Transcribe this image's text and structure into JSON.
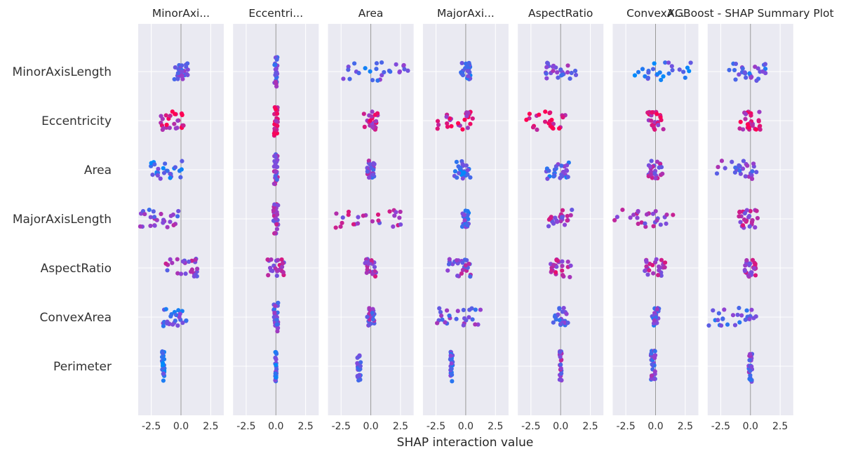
{
  "chart_data": {
    "type": "scatter",
    "title": "XGBoost - SHAP Summary Plot",
    "xlabel": "SHAP interaction value",
    "xlim": [
      -3.6,
      3.6
    ],
    "xticks": [
      "-2.5",
      "0.0",
      "2.5"
    ],
    "xtick_values": [
      -2.5,
      0,
      2.5
    ],
    "features": [
      "MinorAxisLength",
      "Eccentricity",
      "Area",
      "MajorAxisLength",
      "AspectRatio",
      "ConvexArea",
      "Perimeter"
    ],
    "panel_titles": [
      "MinorAxi...",
      "Eccentri...",
      "Area",
      "MajorAxi...",
      "AspectRatio",
      "ConvexA...",
      ""
    ],
    "grid": true,
    "colormap": {
      "low": "#008afb",
      "mid": "#8c45d8",
      "high": "#ff0052"
    },
    "panels": [
      {
        "rows": [
          {
            "center": 0.05,
            "spread": 0.6,
            "color": 0.35
          },
          {
            "center": -0.7,
            "spread": 1.0,
            "color": 0.8
          },
          {
            "center": -1.2,
            "spread": 1.4,
            "color": 0.2
          },
          {
            "center": -2.0,
            "spread": 1.8,
            "color": 0.45
          },
          {
            "center": 0.0,
            "spread": 1.5,
            "color": 0.55
          },
          {
            "center": -0.5,
            "spread": 1.0,
            "color": 0.3
          },
          {
            "center": -1.5,
            "spread": 0.12,
            "color": 0.2
          }
        ]
      },
      {
        "rows": [
          {
            "center": 0.0,
            "spread": 0.12,
            "color": 0.4
          },
          {
            "center": 0.0,
            "spread": 0.15,
            "color": 0.85
          },
          {
            "center": 0.0,
            "spread": 0.15,
            "color": 0.5
          },
          {
            "center": 0.0,
            "spread": 0.2,
            "color": 0.6
          },
          {
            "center": 0.0,
            "spread": 0.7,
            "color": 0.65
          },
          {
            "center": 0.0,
            "spread": 0.2,
            "color": 0.4
          },
          {
            "center": 0.0,
            "spread": 0.05,
            "color": 0.25
          }
        ]
      },
      {
        "rows": [
          {
            "center": 0.5,
            "spread": 3.2,
            "color": 0.3
          },
          {
            "center": 0.0,
            "spread": 0.6,
            "color": 0.75
          },
          {
            "center": 0.0,
            "spread": 0.3,
            "color": 0.45
          },
          {
            "center": -0.2,
            "spread": 2.8,
            "color": 0.6
          },
          {
            "center": 0.0,
            "spread": 0.5,
            "color": 0.6
          },
          {
            "center": 0.0,
            "spread": 0.3,
            "color": 0.45
          },
          {
            "center": -1.0,
            "spread": 0.15,
            "color": 0.3
          }
        ]
      },
      {
        "rows": [
          {
            "center": 0.0,
            "spread": 0.4,
            "color": 0.2
          },
          {
            "center": -1.0,
            "spread": 1.7,
            "color": 0.8
          },
          {
            "center": -0.3,
            "spread": 0.7,
            "color": 0.25
          },
          {
            "center": 0.0,
            "spread": 0.3,
            "color": 0.3
          },
          {
            "center": -0.6,
            "spread": 1.1,
            "color": 0.5
          },
          {
            "center": -0.5,
            "spread": 2.1,
            "color": 0.4
          },
          {
            "center": -1.2,
            "spread": 0.1,
            "color": 0.3
          }
        ]
      },
      {
        "rows": [
          {
            "center": 0.0,
            "spread": 1.3,
            "color": 0.4
          },
          {
            "center": -1.3,
            "spread": 1.7,
            "color": 0.85
          },
          {
            "center": -0.3,
            "spread": 1.0,
            "color": 0.3
          },
          {
            "center": 0.0,
            "spread": 1.1,
            "color": 0.6
          },
          {
            "center": 0.0,
            "spread": 0.9,
            "color": 0.7
          },
          {
            "center": 0.0,
            "spread": 0.7,
            "color": 0.3
          },
          {
            "center": 0.0,
            "spread": 0.08,
            "color": 0.5
          }
        ]
      },
      {
        "rows": [
          {
            "center": 0.5,
            "spread": 2.5,
            "color": 0.2
          },
          {
            "center": 0.0,
            "spread": 0.7,
            "color": 0.75
          },
          {
            "center": 0.0,
            "spread": 0.6,
            "color": 0.55
          },
          {
            "center": -1.0,
            "spread": 2.6,
            "color": 0.55
          },
          {
            "center": 0.0,
            "spread": 0.9,
            "color": 0.6
          },
          {
            "center": 0.0,
            "spread": 0.3,
            "color": 0.35
          },
          {
            "center": -0.2,
            "spread": 0.2,
            "color": 0.4
          }
        ]
      },
      {
        "rows": [
          {
            "center": -0.3,
            "spread": 1.6,
            "color": 0.35
          },
          {
            "center": 0.0,
            "spread": 1.0,
            "color": 0.8
          },
          {
            "center": -1.2,
            "spread": 1.7,
            "color": 0.4
          },
          {
            "center": -0.2,
            "spread": 0.9,
            "color": 0.6
          },
          {
            "center": 0.0,
            "spread": 0.5,
            "color": 0.6
          },
          {
            "center": -1.0,
            "spread": 2.6,
            "color": 0.35
          },
          {
            "center": 0.0,
            "spread": 0.15,
            "color": 0.4
          }
        ]
      }
    ]
  }
}
